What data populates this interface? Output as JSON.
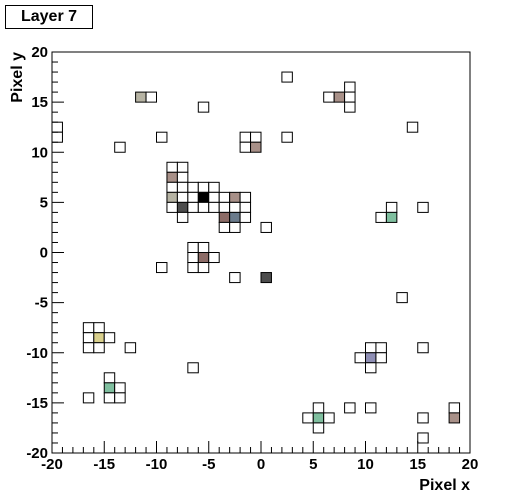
{
  "chart_data": {
    "type": "heatmap",
    "title": "Layer 7",
    "xlabel": "Pixel x",
    "ylabel": "Pixel y",
    "xlim": [
      -20,
      20
    ],
    "ylim": [
      -20,
      20
    ],
    "x_ticks": [
      -20,
      -15,
      -10,
      -5,
      0,
      5,
      10,
      15,
      20
    ],
    "y_ticks": [
      -20,
      -15,
      -10,
      -5,
      0,
      5,
      10,
      15,
      20
    ],
    "grid": false,
    "cells": [
      {
        "x": -20,
        "y": 12,
        "color": "#ffffff"
      },
      {
        "x": -20,
        "y": 11,
        "color": "#ffffff"
      },
      {
        "x": -14,
        "y": 10,
        "color": "#ffffff"
      },
      {
        "x": -12,
        "y": 15,
        "color": "#b6b3a3"
      },
      {
        "x": -11,
        "y": 15,
        "color": "#ffffff"
      },
      {
        "x": -10,
        "y": 11,
        "color": "#ffffff"
      },
      {
        "x": -6,
        "y": 14,
        "color": "#ffffff"
      },
      {
        "x": 2,
        "y": 17,
        "color": "#ffffff"
      },
      {
        "x": 2,
        "y": 11,
        "color": "#ffffff"
      },
      {
        "x": 6,
        "y": 15,
        "color": "#ffffff"
      },
      {
        "x": 7,
        "y": 15,
        "color": "#a89088"
      },
      {
        "x": 8,
        "y": 16,
        "color": "#ffffff"
      },
      {
        "x": 8,
        "y": 15,
        "color": "#ffffff"
      },
      {
        "x": 8,
        "y": 14,
        "color": "#ffffff"
      },
      {
        "x": 14,
        "y": 12,
        "color": "#ffffff"
      },
      {
        "x": -2,
        "y": 11,
        "color": "#ffffff"
      },
      {
        "x": -1,
        "y": 11,
        "color": "#ffffff"
      },
      {
        "x": -2,
        "y": 10,
        "color": "#ffffff"
      },
      {
        "x": -1,
        "y": 10,
        "color": "#a89088"
      },
      {
        "x": -9,
        "y": 8,
        "color": "#ffffff"
      },
      {
        "x": -8,
        "y": 8,
        "color": "#ffffff"
      },
      {
        "x": -9,
        "y": 7,
        "color": "#a89088"
      },
      {
        "x": -8,
        "y": 7,
        "color": "#ffffff"
      },
      {
        "x": -9,
        "y": 6,
        "color": "#ffffff"
      },
      {
        "x": -8,
        "y": 6,
        "color": "#ffffff"
      },
      {
        "x": -7,
        "y": 6,
        "color": "#ffffff"
      },
      {
        "x": -6,
        "y": 6,
        "color": "#ffffff"
      },
      {
        "x": -5,
        "y": 6,
        "color": "#ffffff"
      },
      {
        "x": -9,
        "y": 5,
        "color": "#b6b3a3"
      },
      {
        "x": -8,
        "y": 5,
        "color": "#ffffff"
      },
      {
        "x": -7,
        "y": 5,
        "color": "#ffffff"
      },
      {
        "x": -6,
        "y": 5,
        "color": "#000000"
      },
      {
        "x": -5,
        "y": 5,
        "color": "#ffffff"
      },
      {
        "x": -4,
        "y": 5,
        "color": "#ffffff"
      },
      {
        "x": -3,
        "y": 5,
        "color": "#a89088"
      },
      {
        "x": -2,
        "y": 5,
        "color": "#ffffff"
      },
      {
        "x": -9,
        "y": 4,
        "color": "#ffffff"
      },
      {
        "x": -8,
        "y": 4,
        "color": "#4c4c4c"
      },
      {
        "x": -7,
        "y": 4,
        "color": "#ffffff"
      },
      {
        "x": -6,
        "y": 4,
        "color": "#ffffff"
      },
      {
        "x": -5,
        "y": 4,
        "color": "#ffffff"
      },
      {
        "x": -4,
        "y": 4,
        "color": "#ffffff"
      },
      {
        "x": -3,
        "y": 4,
        "color": "#ffffff"
      },
      {
        "x": -2,
        "y": 4,
        "color": "#ffffff"
      },
      {
        "x": -8,
        "y": 3,
        "color": "#ffffff"
      },
      {
        "x": -4,
        "y": 3,
        "color": "#8c6b66"
      },
      {
        "x": -3,
        "y": 3,
        "color": "#6b7b8c"
      },
      {
        "x": -2,
        "y": 3,
        "color": "#ffffff"
      },
      {
        "x": -4,
        "y": 2,
        "color": "#ffffff"
      },
      {
        "x": -3,
        "y": 2,
        "color": "#ffffff"
      },
      {
        "x": 0,
        "y": 2,
        "color": "#ffffff"
      },
      {
        "x": 12,
        "y": 4,
        "color": "#ffffff"
      },
      {
        "x": 11,
        "y": 3,
        "color": "#ffffff"
      },
      {
        "x": 12,
        "y": 3,
        "color": "#7fbf9f"
      },
      {
        "x": 15,
        "y": 4,
        "color": "#ffffff"
      },
      {
        "x": -7,
        "y": 0,
        "color": "#ffffff"
      },
      {
        "x": -6,
        "y": 0,
        "color": "#ffffff"
      },
      {
        "x": -7,
        "y": -1,
        "color": "#ffffff"
      },
      {
        "x": -6,
        "y": -1,
        "color": "#8c6b66"
      },
      {
        "x": -5,
        "y": -1,
        "color": "#ffffff"
      },
      {
        "x": -7,
        "y": -2,
        "color": "#ffffff"
      },
      {
        "x": -6,
        "y": -2,
        "color": "#ffffff"
      },
      {
        "x": -10,
        "y": -2,
        "color": "#ffffff"
      },
      {
        "x": -3,
        "y": -3,
        "color": "#ffffff"
      },
      {
        "x": 0,
        "y": -3,
        "color": "#4c4c4c"
      },
      {
        "x": 13,
        "y": -5,
        "color": "#ffffff"
      },
      {
        "x": -17,
        "y": -8,
        "color": "#ffffff"
      },
      {
        "x": -16,
        "y": -8,
        "color": "#ffffff"
      },
      {
        "x": -17,
        "y": -9,
        "color": "#ffffff"
      },
      {
        "x": -16,
        "y": -9,
        "color": "#d9d08c"
      },
      {
        "x": -15,
        "y": -9,
        "color": "#ffffff"
      },
      {
        "x": -17,
        "y": -10,
        "color": "#ffffff"
      },
      {
        "x": -16,
        "y": -10,
        "color": "#ffffff"
      },
      {
        "x": -13,
        "y": -10,
        "color": "#ffffff"
      },
      {
        "x": 10,
        "y": -10,
        "color": "#ffffff"
      },
      {
        "x": 11,
        "y": -10,
        "color": "#ffffff"
      },
      {
        "x": 9,
        "y": -11,
        "color": "#ffffff"
      },
      {
        "x": 10,
        "y": -11,
        "color": "#8f8fb5"
      },
      {
        "x": 11,
        "y": -11,
        "color": "#ffffff"
      },
      {
        "x": 10,
        "y": -12,
        "color": "#ffffff"
      },
      {
        "x": -7,
        "y": -12,
        "color": "#ffffff"
      },
      {
        "x": 15,
        "y": -10,
        "color": "#ffffff"
      },
      {
        "x": -15,
        "y": -13,
        "color": "#ffffff"
      },
      {
        "x": -15,
        "y": -14,
        "color": "#7fbf9f"
      },
      {
        "x": -14,
        "y": -14,
        "color": "#ffffff"
      },
      {
        "x": -15,
        "y": -15,
        "color": "#ffffff"
      },
      {
        "x": -14,
        "y": -15,
        "color": "#ffffff"
      },
      {
        "x": -17,
        "y": -15,
        "color": "#ffffff"
      },
      {
        "x": 8,
        "y": -16,
        "color": "#ffffff"
      },
      {
        "x": 10,
        "y": -16,
        "color": "#ffffff"
      },
      {
        "x": 5,
        "y": -16,
        "color": "#ffffff"
      },
      {
        "x": 4,
        "y": -17,
        "color": "#ffffff"
      },
      {
        "x": 5,
        "y": -17,
        "color": "#7fbf9f"
      },
      {
        "x": 6,
        "y": -17,
        "color": "#ffffff"
      },
      {
        "x": 5,
        "y": -18,
        "color": "#ffffff"
      },
      {
        "x": 15,
        "y": -17,
        "color": "#ffffff"
      },
      {
        "x": 15,
        "y": -19,
        "color": "#ffffff"
      },
      {
        "x": 18,
        "y": -16,
        "color": "#ffffff"
      },
      {
        "x": 18,
        "y": -17,
        "color": "#a89088"
      }
    ]
  }
}
